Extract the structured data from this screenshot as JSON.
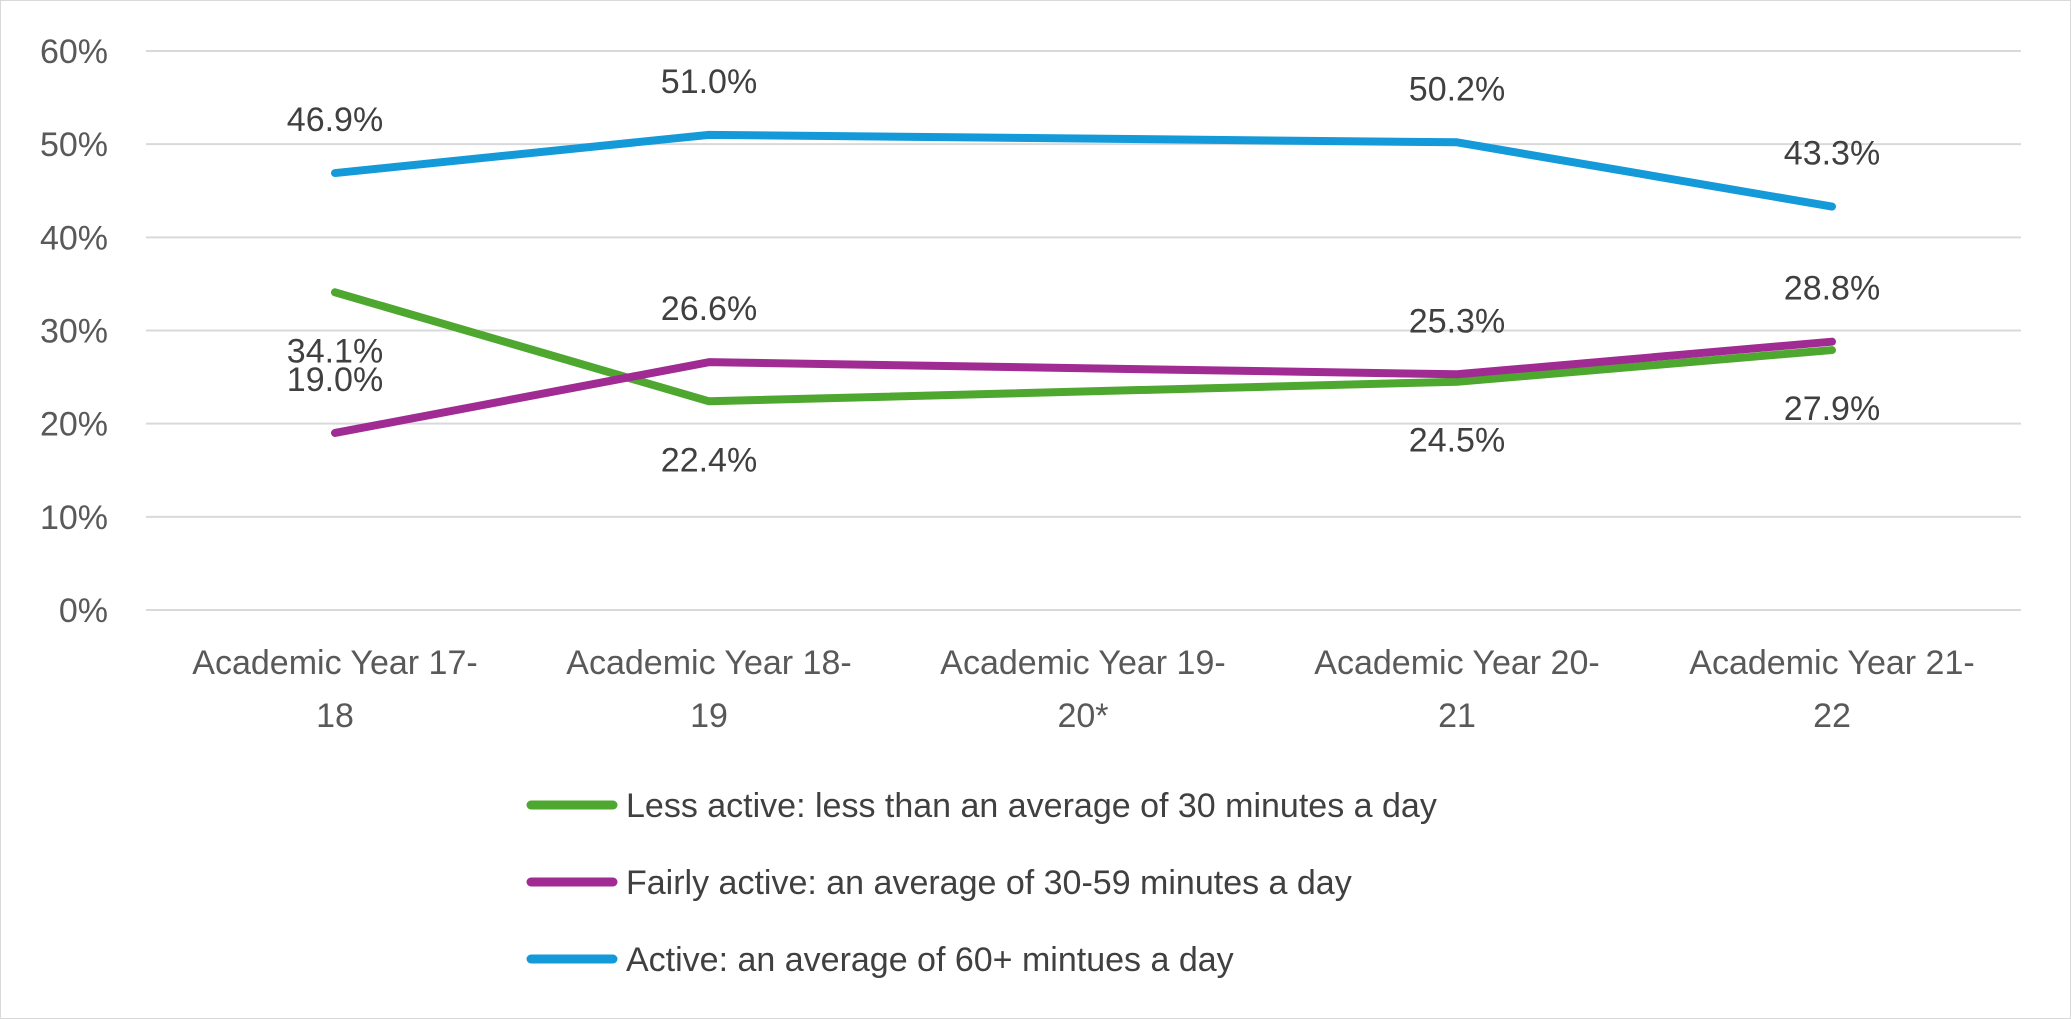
{
  "chart_data": {
    "type": "line",
    "title": "",
    "xlabel": "",
    "ylabel": "",
    "categories": [
      [
        "Academic Year 17-",
        "18"
      ],
      [
        "Academic Year 18-",
        "19"
      ],
      [
        "Academic Year 19-",
        "20*"
      ],
      [
        "Academic Year 20-",
        "21"
      ],
      [
        "Academic Year 21-",
        "22"
      ]
    ],
    "ylim": [
      0,
      60
    ],
    "yticks": [
      0,
      10,
      20,
      30,
      40,
      50,
      60
    ],
    "ytick_labels": [
      "0%",
      "10%",
      "20%",
      "30%",
      "40%",
      "50%",
      "60%"
    ],
    "grid": true,
    "legend_position": "bottom",
    "series": [
      {
        "name": "Less active: less than an average of 30 minutes a day",
        "color": "#4ea72e",
        "values": [
          34.1,
          22.4,
          null,
          24.5,
          27.9
        ],
        "labels": [
          "34.1%",
          "22.4%",
          null,
          "24.5%",
          "27.9%"
        ],
        "label_pos": [
          "below",
          "below",
          null,
          "below",
          "below"
        ]
      },
      {
        "name": "Fairly active: an average of 30-59 minutes a day",
        "color": "#a02b93",
        "values": [
          19.0,
          26.6,
          null,
          25.3,
          28.8
        ],
        "labels": [
          "19.0%",
          "26.6%",
          null,
          "25.3%",
          "28.8%"
        ],
        "label_pos": [
          "above",
          "above",
          null,
          "above",
          "above"
        ]
      },
      {
        "name": "Active: an average of 60+ mintues a day",
        "color": "#149ad9",
        "values": [
          46.9,
          51.0,
          null,
          50.2,
          43.3
        ],
        "labels": [
          "46.9%",
          "51.0%",
          null,
          "50.2%",
          "43.3%"
        ],
        "label_pos": [
          "above",
          "above",
          null,
          "above",
          "above"
        ]
      }
    ]
  }
}
